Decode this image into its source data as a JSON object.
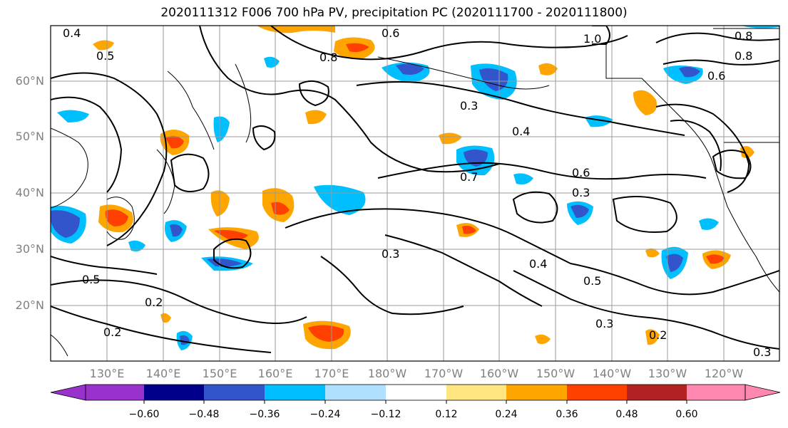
{
  "title": "2020111312 F006 700 hPa PV, precipitation PC (2020111700 - 2020111800)",
  "latitude_labels": [
    "60°N",
    "50°N",
    "40°N",
    "30°N",
    "20°N"
  ],
  "longitude_labels": [
    "130°E",
    "140°E",
    "150°E",
    "160°E",
    "170°E",
    "180°W",
    "170°W",
    "160°W",
    "150°W",
    "140°W",
    "130°W",
    "120°W"
  ],
  "contour_labels": [
    "0.4",
    "0.5",
    "0.6",
    "0.8",
    "1.0",
    "0.3",
    "0.7",
    "0.2",
    "0.6",
    "0.4",
    "0.3",
    "0.5",
    "0.3",
    "0.8",
    "0.6",
    "0.8",
    "0.2",
    "0.3",
    "0.4",
    "0.5",
    "0.3",
    "0.2"
  ],
  "colorbar": {
    "tick_labels": [
      "−0.60",
      "−0.48",
      "−0.36",
      "−0.24",
      "−0.12",
      "0.12",
      "0.24",
      "0.36",
      "0.48",
      "0.60"
    ],
    "colors": [
      "#9932cc",
      "#00008b",
      "#3355cc",
      "#00bfff",
      "#b0e0ff",
      "#ffffff",
      "#ffe680",
      "#ffa500",
      "#ff4000",
      "#b22222",
      "#ff88b0"
    ]
  }
}
